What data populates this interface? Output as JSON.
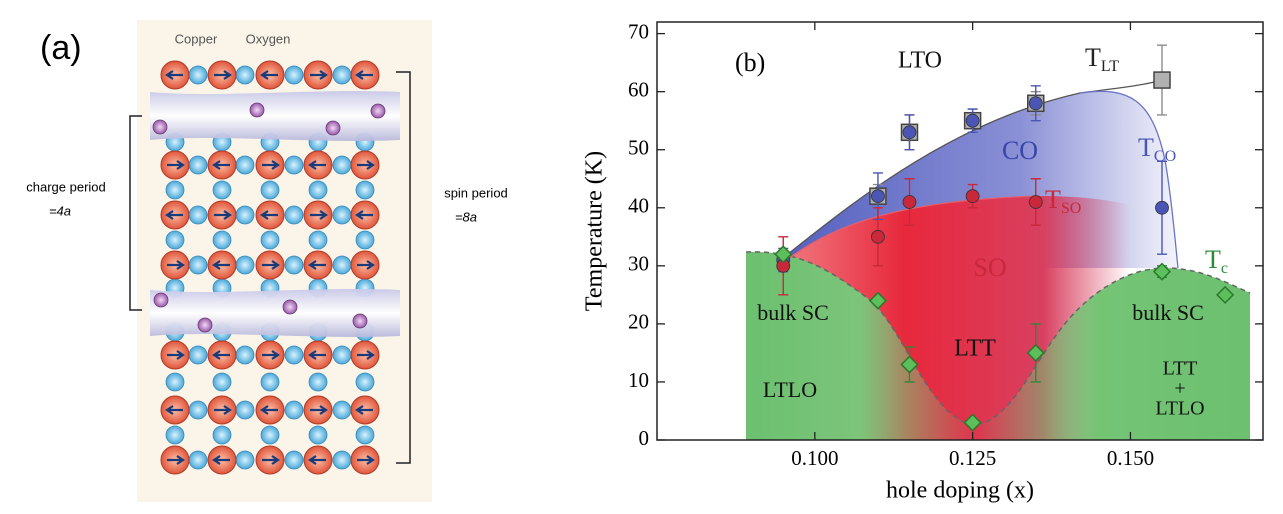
{
  "panel_a": {
    "label": "(a)",
    "copper": "Copper",
    "oxygen": "Oxygen",
    "charge_period": "charge period",
    "charge_value": "=4a",
    "spin_period": "spin period",
    "spin_value": "=8a"
  },
  "chart_data": {
    "type": "scatter",
    "panel_label": "(b)",
    "xlabel": "hole doping (x)",
    "ylabel": "Temperature  (K)",
    "xlim": [
      0.075,
      0.171
    ],
    "ylim": [
      0,
      72
    ],
    "xticks": [
      {
        "value": 0.1,
        "label": "0.100"
      },
      {
        "value": 0.125,
        "label": "0.125"
      },
      {
        "value": 0.15,
        "label": "0.150"
      }
    ],
    "yticks": [
      0,
      10,
      20,
      30,
      40,
      50,
      60,
      70
    ],
    "series": [
      {
        "name": "T",
        "name_sub": "LT",
        "color": "#8c8c8c",
        "marker": "square",
        "x": [
          0.11,
          0.115,
          0.125,
          0.135,
          0.155
        ],
        "values": [
          42,
          53,
          55,
          58,
          62
        ],
        "errors": [
          2,
          3,
          2,
          2,
          6
        ]
      },
      {
        "name": "T",
        "name_sub": "CO",
        "color": "#4a55b5",
        "marker": "circle",
        "x": [
          0.095,
          0.11,
          0.115,
          0.125,
          0.135,
          0.155
        ],
        "values": [
          31,
          42,
          53,
          55,
          58,
          40
        ],
        "errors": [
          2,
          4,
          3,
          2,
          3,
          8
        ]
      },
      {
        "name": "T",
        "name_sub": "SO",
        "color": "#c8283a",
        "marker": "circle",
        "x": [
          0.095,
          0.11,
          0.115,
          0.125,
          0.135
        ],
        "values": [
          30,
          35,
          41,
          42,
          41
        ],
        "errors": [
          5,
          5,
          4,
          2,
          4
        ]
      },
      {
        "name": "T",
        "name_sub": "c",
        "color": "#2a8a3a",
        "marker": "diamond",
        "x": [
          0.095,
          0.11,
          0.115,
          0.125,
          0.135,
          0.155,
          0.165
        ],
        "values": [
          32,
          24,
          13,
          3,
          15,
          29,
          25
        ],
        "errors": [
          0,
          0,
          3,
          0,
          5,
          1,
          0
        ]
      }
    ],
    "annotations": [
      {
        "text": "LTO",
        "color": "#111111"
      },
      {
        "text": "CO",
        "color": "#3a45a8"
      },
      {
        "text": "SO",
        "color": "#c8283a"
      },
      {
        "text": "LTT",
        "color": "#111111"
      },
      {
        "text": "bulk SC",
        "color": "#111111"
      },
      {
        "text": "bulk SC",
        "color": "#111111"
      },
      {
        "text": "LTLO",
        "color": "#111111"
      },
      {
        "text": "LTT",
        "color": "#111111"
      },
      {
        "text": "+",
        "color": "#111111"
      },
      {
        "text": "LTLO",
        "color": "#111111"
      }
    ]
  }
}
